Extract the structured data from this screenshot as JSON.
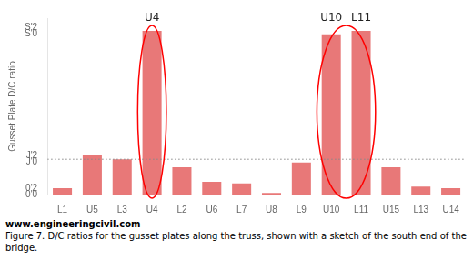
{
  "chart_data": {
    "type": "bar",
    "categories": [
      "L1",
      "U5",
      "L3",
      "U4",
      "L2",
      "U6",
      "L7",
      "U8",
      "L9",
      "U10",
      "L11",
      "U15",
      "L13",
      "U14"
    ],
    "values": [
      0.2,
      1.22,
      1.1,
      5.1,
      0.85,
      0.4,
      0.35,
      0.05,
      1.0,
      5.0,
      5.1,
      0.85,
      0.25,
      0.2
    ],
    "color": "#e87878",
    "ylim": [
      0.0,
      5.5
    ],
    "yticks": [
      {
        "value": 0.0,
        "label": "0'0"
      },
      {
        "value": 0.2,
        "label": "0'2"
      },
      {
        "value": 1.0,
        "label": "J'0"
      },
      {
        "value": 1.2,
        "label": "J'2"
      },
      {
        "value": 5.0,
        "label": "S'0"
      },
      {
        "value": 5.2,
        "label": "S'2"
      }
    ],
    "ylabel": "Gusset Plate D/C ratio",
    "hline": {
      "value": 1.1,
      "line_style": "dotted"
    },
    "highlights": [
      {
        "categories": [
          "U4"
        ],
        "color": "red"
      },
      {
        "categories": [
          "U10",
          "L11"
        ],
        "color": "red"
      }
    ],
    "annotations": [
      {
        "text": "U4",
        "category": "U4"
      },
      {
        "text": "U10",
        "category": "U10"
      },
      {
        "text": "L11",
        "category": "L11"
      }
    ],
    "footnote": "www.engineeringcivil.com",
    "caption": "Figure 7.  D/C ratios for the gusset plates along the truss, shown with a sketch of the south end of the bridge.",
    "grid": false
  }
}
